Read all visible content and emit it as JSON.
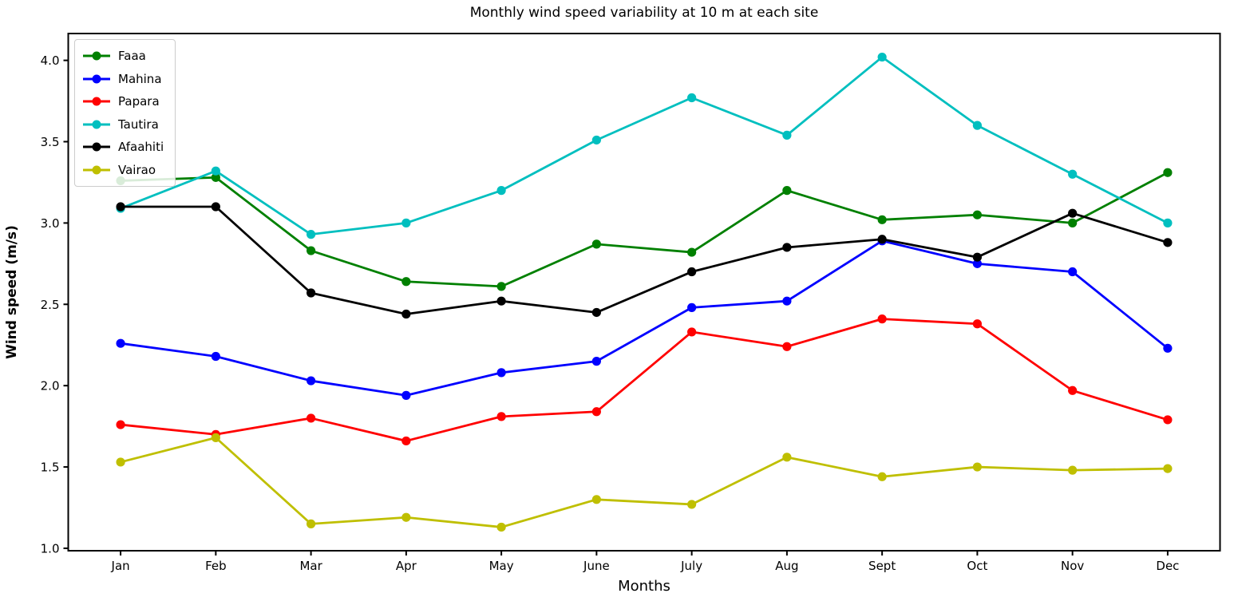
{
  "figure": {
    "background": "#ffffff"
  },
  "chart_data": {
    "type": "line",
    "title": "Monthly wind speed variability at 10 m at each site",
    "xlabel": "Months",
    "ylabel": "Wind speed (m/s)",
    "categories": [
      "Jan",
      "Feb",
      "Mar",
      "Apr",
      "May",
      "June",
      "July",
      "Aug",
      "Sept",
      "Oct",
      "Nov",
      "Dec"
    ],
    "series": [
      {
        "name": "Faaa",
        "color": "#008000",
        "values": [
          3.26,
          3.28,
          2.83,
          2.64,
          2.61,
          2.87,
          2.82,
          3.2,
          3.02,
          3.05,
          3.0,
          3.31
        ]
      },
      {
        "name": "Mahina",
        "color": "#0000ff",
        "values": [
          2.26,
          2.18,
          2.03,
          1.94,
          2.08,
          2.15,
          2.48,
          2.52,
          2.89,
          2.75,
          2.7,
          2.23
        ]
      },
      {
        "name": "Papara",
        "color": "#ff0000",
        "values": [
          1.76,
          1.7,
          1.8,
          1.66,
          1.81,
          1.84,
          2.33,
          2.24,
          2.41,
          2.38,
          1.97,
          1.79
        ]
      },
      {
        "name": "Tautira",
        "color": "#00bfbf",
        "values": [
          3.09,
          3.32,
          2.93,
          3.0,
          3.2,
          3.51,
          3.77,
          3.54,
          4.02,
          3.6,
          3.3,
          3.0
        ]
      },
      {
        "name": "Afaahiti",
        "color": "#000000",
        "values": [
          3.1,
          3.1,
          2.57,
          2.44,
          2.52,
          2.45,
          2.7,
          2.85,
          2.9,
          2.79,
          3.06,
          2.88
        ]
      },
      {
        "name": "Vairao",
        "color": "#bfbf00",
        "values": [
          1.53,
          1.68,
          1.15,
          1.19,
          1.13,
          1.3,
          1.27,
          1.56,
          1.44,
          1.5,
          1.48,
          1.49
        ]
      }
    ],
    "ylim": [
      0.985,
      4.165
    ],
    "yticks": [
      1.0,
      1.5,
      2.0,
      2.5,
      3.0,
      3.5,
      4.0
    ],
    "ytick_labels": [
      "1.0",
      "1.5",
      "2.0",
      "2.5",
      "3.0",
      "3.5",
      "4.0"
    ],
    "grid": false,
    "legend_position": "upper-left",
    "marker": "o",
    "axis_color": "#000000"
  }
}
